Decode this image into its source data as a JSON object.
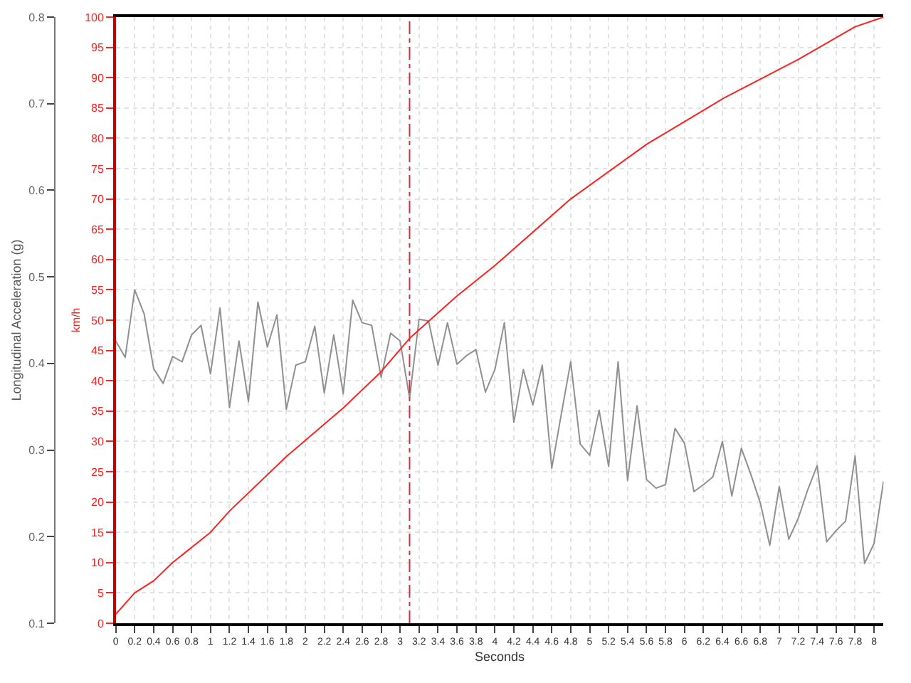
{
  "chart_data": {
    "type": "line",
    "xlabel": "Seconds",
    "ylabel": "Longitudinal Acceleration (g)",
    "y2label": "km/h",
    "series": [
      {
        "color": "#909090",
        "x": [
          0,
          0.1,
          0.2,
          0.3,
          0.4,
          0.5,
          0.6,
          0.7,
          0.8,
          0.9,
          1.0,
          1.1,
          1.2,
          1.3,
          1.4,
          1.5,
          1.6,
          1.7,
          1.8,
          1.9,
          2.0,
          2.1,
          2.2,
          2.3,
          2.4,
          2.5,
          2.6,
          2.7,
          2.8,
          2.9,
          3.0,
          3.1,
          3.2,
          3.3,
          3.4,
          3.5,
          3.6,
          3.7,
          3.8,
          3.9,
          4.0,
          4.1,
          4.2,
          4.3,
          4.4,
          4.5,
          4.6,
          4.7,
          4.8,
          4.9,
          5.0,
          5.1,
          5.2,
          5.3,
          5.4,
          5.5,
          5.6,
          5.7,
          5.8,
          5.9,
          6.0,
          6.1,
          6.2,
          6.3,
          6.4,
          6.5,
          6.6,
          6.7,
          6.8,
          6.9,
          7.0,
          7.1,
          7.2,
          7.3,
          7.4,
          7.5,
          7.6,
          7.7,
          7.8,
          7.9,
          8.0,
          8.1
        ],
        "values": [
          0.426,
          0.407,
          0.485,
          0.457,
          0.394,
          0.377,
          0.408,
          0.402,
          0.433,
          0.444,
          0.388,
          0.464,
          0.349,
          0.426,
          0.356,
          0.471,
          0.419,
          0.456,
          0.347,
          0.398,
          0.402,
          0.443,
          0.366,
          0.433,
          0.365,
          0.473,
          0.447,
          0.444,
          0.384,
          0.435,
          0.426,
          0.36,
          0.451,
          0.449,
          0.398,
          0.447,
          0.399,
          0.409,
          0.416,
          0.367,
          0.393,
          0.447,
          0.332,
          0.393,
          0.352,
          0.398,
          0.279,
          0.341,
          0.402,
          0.307,
          0.294,
          0.346,
          0.281,
          0.402,
          0.265,
          0.351,
          0.266,
          0.256,
          0.26,
          0.325,
          0.308,
          0.252,
          0.26,
          0.269,
          0.31,
          0.247,
          0.302,
          0.272,
          0.239,
          0.19,
          0.258,
          0.197,
          0.221,
          0.254,
          0.282,
          0.194,
          0.207,
          0.218,
          0.293,
          0.169,
          0.192,
          0.264
        ]
      },
      {
        "color": "#ff2020",
        "axis": "y2",
        "x": [
          0,
          0.2,
          0.4,
          0.6,
          1.0,
          1.2,
          1.8,
          2.4,
          2.8,
          3.1,
          3.6,
          4.0,
          4.8,
          5.6,
          6.4,
          7.2,
          7.8,
          8.1
        ],
        "values": [
          1.5,
          5,
          7,
          10,
          15,
          18.5,
          27.5,
          35.5,
          41.5,
          47,
          54,
          59,
          70,
          79,
          86.5,
          93,
          98.4,
          100
        ]
      }
    ],
    "xlim": [
      0,
      8.1
    ],
    "xticks": [
      0,
      {
        "value": 0.2,
        "label": "0.2"
      },
      {
        "value": 0.4,
        "label": "0.4"
      },
      {
        "value": 0.6,
        "label": "0.6"
      },
      {
        "value": 0.8,
        "label": "0.8"
      },
      1,
      1.2,
      1.4,
      1.6,
      1.8,
      2,
      2.2,
      2.4,
      2.6,
      2.8,
      3,
      3.2,
      3.4,
      3.6,
      3.8,
      4,
      4.2,
      4.4,
      4.6,
      4.8,
      5,
      5.2,
      5.4,
      5.6,
      5.8,
      6,
      6.2,
      6.4,
      6.6,
      6.8,
      7,
      7.2,
      7.4,
      7.6,
      7.8,
      8
    ],
    "ylim": [
      0.1,
      0.8
    ],
    "yticks": [
      0.1,
      0.2,
      0.3,
      0.4,
      0.5,
      0.6,
      0.7,
      0.8
    ],
    "y2lim": [
      0,
      100
    ],
    "y2ticks": [
      0,
      5,
      10,
      15,
      20,
      25,
      30,
      35,
      40,
      45,
      50,
      55,
      60,
      65,
      70,
      75,
      80,
      85,
      90,
      95,
      100
    ],
    "ref_lines": [
      {
        "axis": "x",
        "value": 3.1,
        "color": "#d03040",
        "line_style": "dashed"
      }
    ],
    "grid": true,
    "marker": "none",
    "line_style": "solid"
  }
}
